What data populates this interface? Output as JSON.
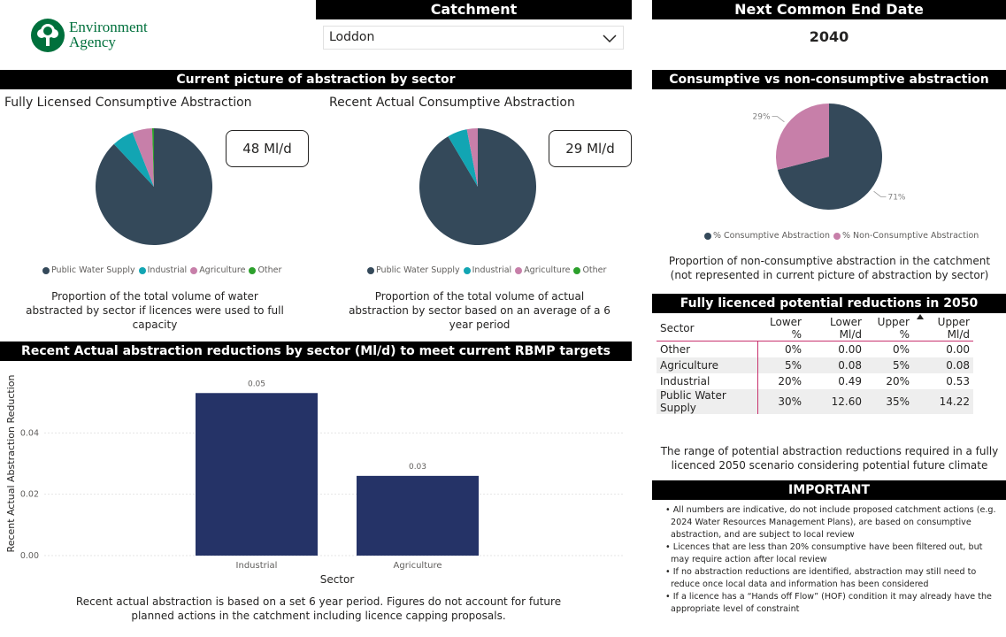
{
  "logo": {
    "line1": "Environment",
    "line2": "Agency"
  },
  "catchment": {
    "header": "Catchment",
    "selected": "Loddon"
  },
  "end_date": {
    "header": "Next Common End Date",
    "value": "2040"
  },
  "sector_section": {
    "header": "Current picture of abstraction by sector"
  },
  "licensed": {
    "title": "Fully Licensed Consumptive Abstraction",
    "card": "48 Ml/d",
    "caption": "Proportion of the total volume of water abstracted by sector if licences were used to full capacity"
  },
  "actual": {
    "title": "Recent Actual Consumptive Abstraction",
    "card": "29 Ml/d",
    "caption": "Proportion of the total volume of actual abstraction by sector based on an average of a 6 year period"
  },
  "legend": [
    {
      "label": "Public Water Supply",
      "color": "#34495a"
    },
    {
      "label": "Industrial",
      "color": "#12a5b3"
    },
    {
      "label": "Agriculture",
      "color": "#c77fa9"
    },
    {
      "label": "Other",
      "color": "#2ca02c"
    }
  ],
  "consumptive": {
    "header": "Consumptive vs non-consumptive abstraction",
    "legend": [
      {
        "label": "% Consumptive Abstraction",
        "color": "#34495a"
      },
      {
        "label": "% Non-Consumptive Abstraction",
        "color": "#c77fa9"
      }
    ],
    "caption": "Proportion of non-consumptive abstraction in the catchment (not represented in current picture of abstraction by sector)"
  },
  "reductions_table": {
    "header": "Fully licenced potential reductions in 2050",
    "columns": [
      "Sector",
      "Lower %",
      "Lower Ml/d",
      "Upper %",
      "Upper Ml/d"
    ],
    "rows": [
      [
        "Other",
        "0%",
        "0.00",
        "0%",
        "0.00"
      ],
      [
        "Agriculture",
        "5%",
        "0.08",
        "5%",
        "0.08"
      ],
      [
        "Industrial",
        "20%",
        "0.49",
        "20%",
        "0.53"
      ],
      [
        "Public Water Supply",
        "30%",
        "12.60",
        "35%",
        "14.22"
      ]
    ],
    "caption": "The range of potential abstraction reductions required in a fully licenced 2050 scenario considering potential future climate"
  },
  "important": {
    "header": "IMPORTANT",
    "items": [
      "All numbers are indicative, do not include proposed catchment actions (e.g. 2024 Water Resources Management Plans), are based on consumptive abstraction, and are subject to local review",
      "Licences that are less than 20% consumptive have been filtered out, but may require action after local review",
      "If no abstraction reductions are identified, abstraction may still need to reduce once local data and information has been considered",
      "If a licence has a “Hands off Flow” (HOF) condition it may already have the appropriate level of constraint"
    ]
  },
  "bar_section": {
    "header": "Recent Actual abstraction reductions by sector (Ml/d) to meet current RBMP targets",
    "caption": "Recent actual abstraction is based on a set 6 year period. Figures do not account for future planned actions in the catchment including licence capping proposals."
  },
  "chart_data": [
    {
      "type": "pie",
      "title": "Fully Licensed Consumptive Abstraction",
      "labels": [
        "Public Water Supply",
        "Industrial",
        "Agriculture",
        "Other"
      ],
      "values": [
        88.0,
        6.0,
        5.5,
        0.5
      ]
    },
    {
      "type": "pie",
      "title": "Recent Actual Consumptive Abstraction",
      "labels": [
        "Public Water Supply",
        "Industrial",
        "Agriculture",
        "Other"
      ],
      "values": [
        91.5,
        5.5,
        3.0,
        0.0
      ]
    },
    {
      "type": "pie",
      "title": "Consumptive vs non-consumptive abstraction",
      "labels": [
        "% Consumptive Abstraction",
        "% Non-Consumptive Abstraction"
      ],
      "values": [
        71,
        29
      ],
      "data_labels": [
        "71%",
        "29%"
      ]
    },
    {
      "type": "bar",
      "title": "Recent Actual abstraction reductions by sector (Ml/d) to meet current RBMP targets",
      "categories": [
        "Industrial",
        "Agriculture"
      ],
      "values": [
        0.053,
        0.026
      ],
      "data_labels": [
        "0.05",
        "0.03"
      ],
      "xlabel": "Sector",
      "ylabel": "Recent Actual Abstraction Reduction",
      "ylim": [
        0,
        0.06
      ],
      "yticks": [
        "0.00",
        "0.02",
        "0.04"
      ],
      "color": "#253367"
    }
  ]
}
